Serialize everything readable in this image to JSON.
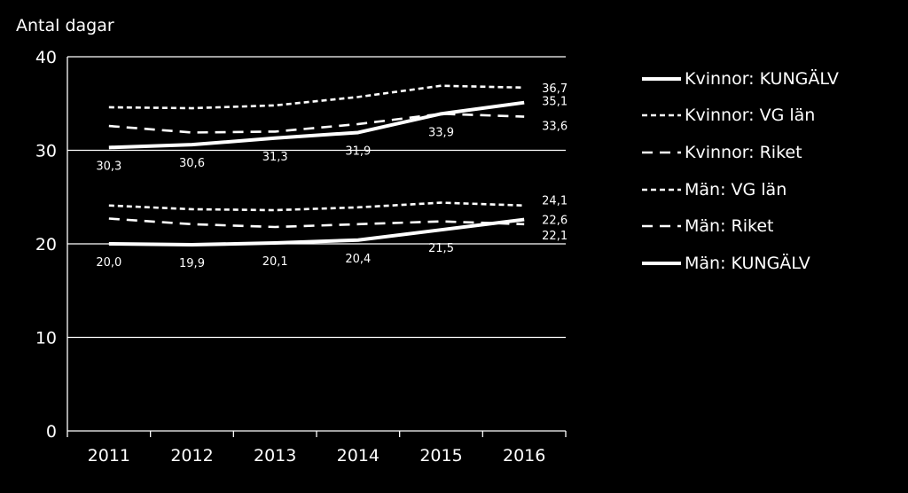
{
  "chart_data": {
    "type": "line",
    "ylabel": "Antal dagar",
    "xlabel": "",
    "title": "",
    "categories": [
      "2011",
      "2012",
      "2013",
      "2014",
      "2015",
      "2016"
    ],
    "ylim": [
      0,
      40
    ],
    "yticks": [
      "0",
      "10",
      "20",
      "30",
      "40"
    ],
    "grid": true,
    "legend_position": "right",
    "series": [
      {
        "name": "Kvinnor: KUNGÄLV",
        "style": "solid",
        "color": "#ffffff",
        "values": [
          30.3,
          30.6,
          31.3,
          31.9,
          33.9,
          35.1
        ],
        "labels": [
          "30,3",
          "30,6",
          "31,3",
          "31,9",
          "33,9",
          "35,1"
        ]
      },
      {
        "name": "Kvinnor: VG län",
        "style": "short-dash",
        "color": "#ffffff",
        "values": [
          34.6,
          34.5,
          34.8,
          35.7,
          36.9,
          36.7
        ],
        "labels": [
          "",
          "",
          "",
          "",
          "",
          "36,7"
        ]
      },
      {
        "name": "Kvinnor: Riket",
        "style": "long-dash",
        "color": "#ffffff",
        "values": [
          32.6,
          31.9,
          32.0,
          32.8,
          33.9,
          33.6
        ],
        "labels": [
          "",
          "",
          "",
          "",
          "",
          "33,6"
        ]
      },
      {
        "name": "Män: VG län",
        "style": "short-dash",
        "color": "#ffffff",
        "values": [
          24.1,
          23.7,
          23.6,
          23.9,
          24.4,
          24.1
        ],
        "labels": [
          "",
          "",
          "",
          "",
          "",
          "24,1"
        ]
      },
      {
        "name": "Män: Riket",
        "style": "long-dash",
        "color": "#ffffff",
        "values": [
          22.7,
          22.1,
          21.8,
          22.1,
          22.4,
          22.1
        ],
        "labels": [
          "",
          "",
          "",
          "",
          "",
          "22,1"
        ]
      },
      {
        "name": "Män: KUNGÄLV",
        "style": "solid",
        "color": "#ffffff",
        "values": [
          20.0,
          19.9,
          20.1,
          20.4,
          21.5,
          22.6
        ],
        "labels": [
          "20,0",
          "19,9",
          "20,1",
          "20,4",
          "21,5",
          "22,6"
        ]
      }
    ]
  }
}
